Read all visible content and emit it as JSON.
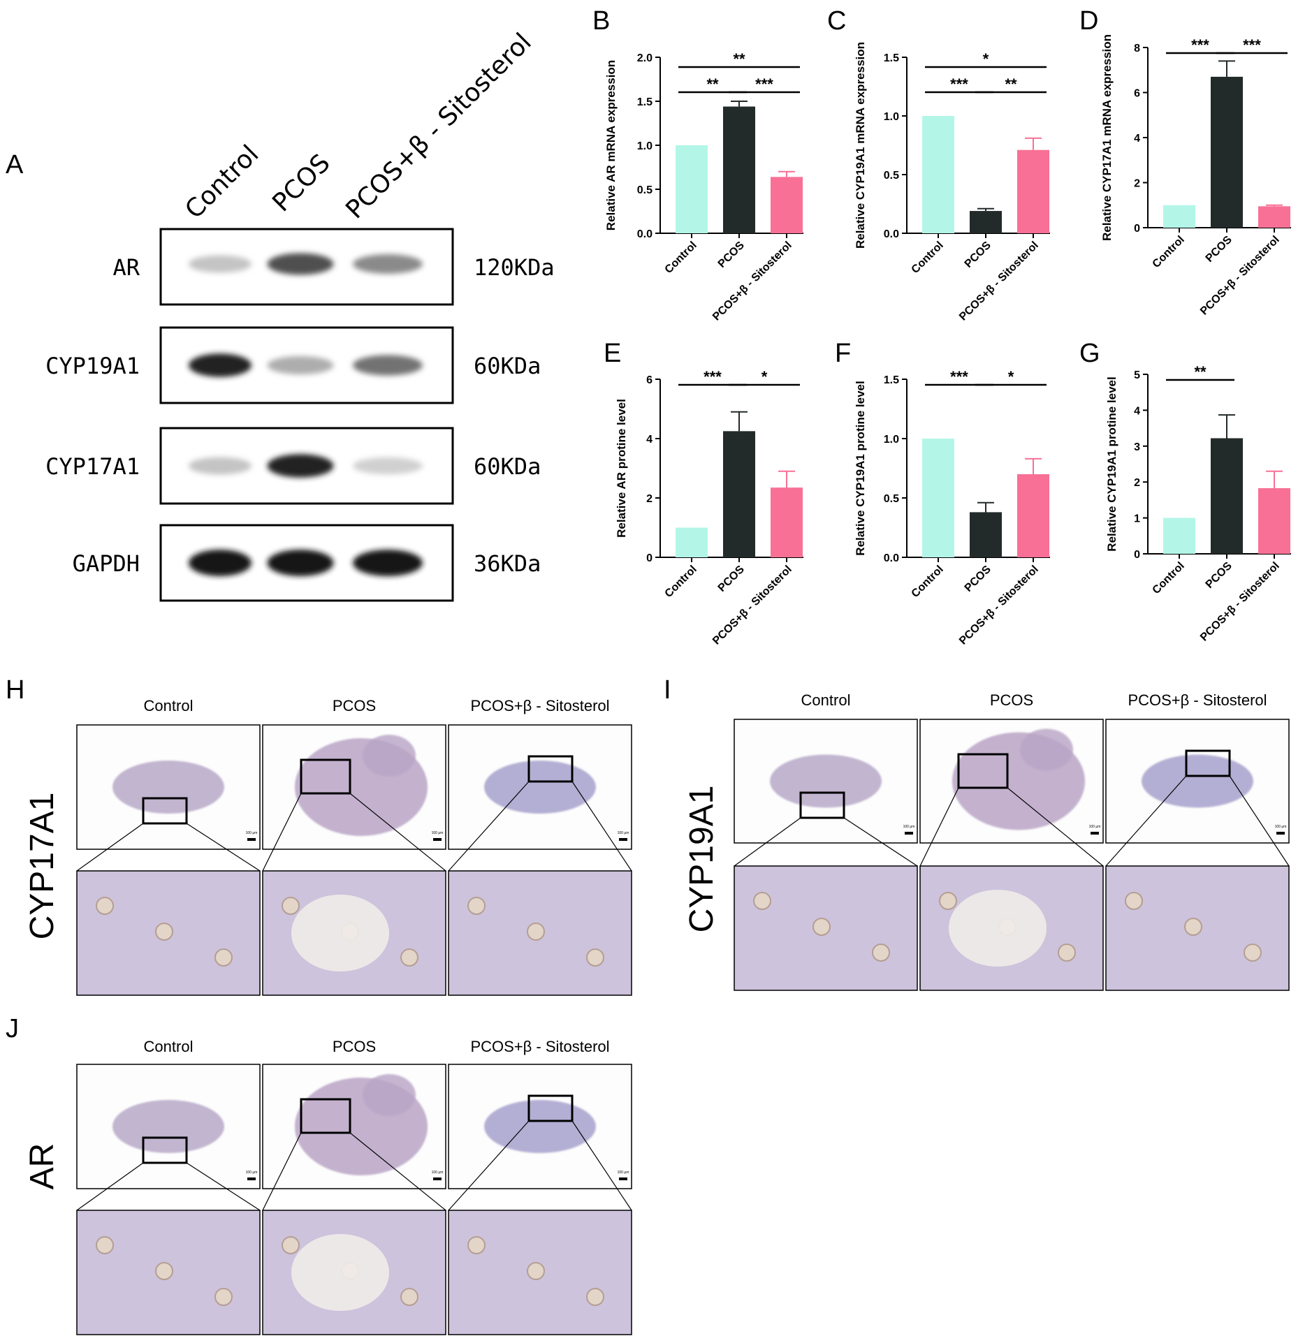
{
  "panel_labels": {
    "A": "A",
    "B": "B",
    "C": "C",
    "D": "D",
    "E": "E",
    "F": "F",
    "G": "G",
    "H": "H",
    "I": "I",
    "J": "J"
  },
  "groups": [
    "Control",
    "PCOS",
    "PCOS+β - Sitosterol"
  ],
  "western_blot": {
    "rows": [
      {
        "protein": "AR",
        "mw": "120KDa"
      },
      {
        "protein": "CYP19A1",
        "mw": "60KDa"
      },
      {
        "protein": "CYP17A1",
        "mw": "60KDa"
      },
      {
        "protein": "GAPDH",
        "mw": "36KDa"
      }
    ],
    "band_intensity": [
      [
        0.25,
        0.75,
        0.5
      ],
      [
        0.95,
        0.35,
        0.6
      ],
      [
        0.25,
        0.95,
        0.2
      ],
      [
        1.0,
        1.0,
        1.0
      ]
    ]
  },
  "colors": {
    "Control": "#b3f6e8",
    "PCOS": "#232a2a",
    "PCOS+β - Sitosterol": "#f87096"
  },
  "chart_data": [
    {
      "panel": "B",
      "type": "bar",
      "ylabel": "Relative AR mRNA expression",
      "categories": [
        "Control",
        "PCOS",
        "PCOS+β - Sitosterol"
      ],
      "values": [
        1.0,
        1.44,
        0.64
      ],
      "errors": [
        0,
        0.06,
        0.06
      ],
      "ylim": [
        0,
        2.0
      ],
      "yticks": [
        "0.0",
        "0.5",
        "1.0",
        "1.5",
        "2.0"
      ],
      "significance": [
        {
          "from": 0,
          "to": 2,
          "label": "**"
        },
        {
          "from": 0,
          "to": 1,
          "label": "**"
        },
        {
          "from": 1,
          "to": 2,
          "label": "***"
        }
      ]
    },
    {
      "panel": "C",
      "type": "bar",
      "ylabel": "Relative CYP19A1 mRNA expression",
      "categories": [
        "Control",
        "PCOS",
        "PCOS+β - Sitosterol"
      ],
      "values": [
        1.0,
        0.19,
        0.71
      ],
      "errors": [
        0,
        0.02,
        0.1
      ],
      "ylim": [
        0,
        1.5
      ],
      "yticks": [
        "0.0",
        "0.5",
        "1.0",
        "1.5"
      ],
      "significance": [
        {
          "from": 0,
          "to": 2,
          "label": "*"
        },
        {
          "from": 0,
          "to": 1,
          "label": "***"
        },
        {
          "from": 1,
          "to": 2,
          "label": "**"
        }
      ]
    },
    {
      "panel": "D",
      "type": "bar",
      "ylabel": "Relative CYP17A1 mRNA expression",
      "categories": [
        "Control",
        "PCOS",
        "PCOS+β - Sitosterol"
      ],
      "values": [
        1.0,
        6.7,
        0.95
      ],
      "errors": [
        0,
        0.7,
        0.05
      ],
      "ylim": [
        0,
        8
      ],
      "yticks": [
        "0",
        "2",
        "4",
        "6",
        "8"
      ],
      "significance": [
        {
          "from": 0,
          "to": 1,
          "label": "***"
        },
        {
          "from": 1,
          "to": 2,
          "label": "***"
        }
      ]
    },
    {
      "panel": "E",
      "type": "bar",
      "ylabel": "Relative AR protine level",
      "categories": [
        "Control",
        "PCOS",
        "PCOS+β - Sitosterol"
      ],
      "values": [
        1.0,
        4.25,
        2.35
      ],
      "errors": [
        0,
        0.65,
        0.55
      ],
      "ylim": [
        0,
        6
      ],
      "yticks": [
        "0",
        "2",
        "4",
        "6"
      ],
      "significance": [
        {
          "from": 0,
          "to": 1,
          "label": "***"
        },
        {
          "from": 1,
          "to": 2,
          "label": "*"
        }
      ]
    },
    {
      "panel": "F",
      "type": "bar",
      "ylabel": "Relative CYP19A1 protine level",
      "categories": [
        "Control",
        "PCOS",
        "PCOS+β - Sitosterol"
      ],
      "values": [
        1.0,
        0.38,
        0.7
      ],
      "errors": [
        0,
        0.08,
        0.13
      ],
      "ylim": [
        0,
        1.5
      ],
      "yticks": [
        "0.0",
        "0.5",
        "1.0",
        "1.5"
      ],
      "significance": [
        {
          "from": 0,
          "to": 1,
          "label": "***"
        },
        {
          "from": 1,
          "to": 2,
          "label": "*"
        }
      ]
    },
    {
      "panel": "G",
      "type": "bar",
      "ylabel": "Relative CYP19A1 protine level",
      "categories": [
        "Control",
        "PCOS",
        "PCOS+β - Sitosterol"
      ],
      "values": [
        1.0,
        3.22,
        1.83
      ],
      "errors": [
        0,
        0.65,
        0.47
      ],
      "ylim": [
        0,
        5
      ],
      "yticks": [
        "0",
        "1",
        "2",
        "3",
        "4",
        "5"
      ],
      "significance": [
        {
          "from": 0,
          "to": 1,
          "label": "**"
        }
      ]
    }
  ],
  "ihc": [
    {
      "panel": "H",
      "marker": "CYP17A1",
      "scale": "100 μm"
    },
    {
      "panel": "I",
      "marker": "CYP19A1",
      "scale": "100 μm"
    },
    {
      "panel": "J",
      "marker": "AR",
      "scale": "100 μm"
    }
  ]
}
